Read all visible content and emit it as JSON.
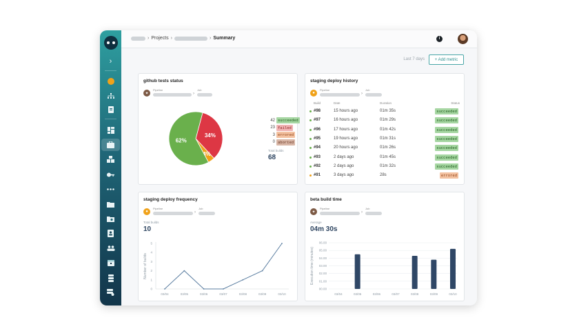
{
  "topbar": {
    "crumb_projects": "Projects",
    "crumb_current": "Summary",
    "info_glyph": "i",
    "help_glyph": "?"
  },
  "metrics": {
    "range_label": "Last 7 days",
    "add_metric_label": "+ Add metric"
  },
  "sidebar": {
    "collapse_glyph": "›",
    "items": [
      "org-badge-icon",
      "sitemap-icon",
      "document-icon",
      "dashboard-icon",
      "briefcase-icon",
      "cubes-icon",
      "key-icon",
      "dots-icon",
      "folder-icon",
      "folder-settings-icon",
      "contacts-icon",
      "users-icon",
      "calendar-icon",
      "server-icon",
      "server-settings-icon"
    ]
  },
  "pipeline_labels": {
    "pipeline": "Pipeline",
    "job": "Job",
    "arrow": "›"
  },
  "cards": {
    "github": {
      "title": "github tests status",
      "total_label": "Total builds",
      "total_value": "68",
      "slice_labels": [
        "34%",
        "4%",
        "62%"
      ]
    },
    "history": {
      "title": "staging deploy history",
      "col_build": "Build",
      "col_date": "Date",
      "col_duration": "Duration",
      "col_status": "Status"
    },
    "frequency": {
      "title": "staging deploy frequency",
      "total_label": "Total builds",
      "total_value": "10",
      "ylabel": "Number of builds"
    },
    "beta": {
      "title": "beta build time",
      "avg_label": "Average",
      "avg_value": "04m 30s",
      "ylabel": "Execution time (minutes)"
    }
  },
  "build_counts": [
    {
      "count": "42",
      "status": "succeeded",
      "color": "#a6d6a2"
    },
    {
      "count": "23",
      "status": "failed",
      "color": "#f0b3b3"
    },
    {
      "count": "3",
      "status": "errored",
      "color": "#f3c1a0"
    },
    {
      "count": "0",
      "status": "aborted",
      "color": "#d8b6a6"
    }
  ],
  "history_rows": [
    {
      "build": "#98",
      "date": "15 hours ago",
      "duration": "01m 35s",
      "status": "succeeded"
    },
    {
      "build": "#97",
      "date": "16 hours ago",
      "duration": "01m 29s",
      "status": "succeeded"
    },
    {
      "build": "#96",
      "date": "17 hours ago",
      "duration": "01m 42s",
      "status": "succeeded"
    },
    {
      "build": "#95",
      "date": "19 hours ago",
      "duration": "01m 31s",
      "status": "succeeded"
    },
    {
      "build": "#94",
      "date": "20 hours ago",
      "duration": "01m 26s",
      "status": "succeeded"
    },
    {
      "build": "#93",
      "date": "2 days ago",
      "duration": "01m 45s",
      "status": "succeeded"
    },
    {
      "build": "#92",
      "date": "2 days ago",
      "duration": "01m 32s",
      "status": "succeeded"
    },
    {
      "build": "#91",
      "date": "3 days ago",
      "duration": "28s",
      "status": "errored"
    }
  ],
  "colors": {
    "succeeded": "#6ab04c",
    "failed": "#dd3744",
    "errored": "#f0a21a",
    "line": "#5b7ea1",
    "bar": "#2f4766",
    "accent": "#2e8f90"
  },
  "chart_data": [
    {
      "type": "pie",
      "categories": [
        "failed",
        "errored",
        "succeeded"
      ],
      "values": [
        34,
        4,
        62
      ],
      "title": "github tests status"
    },
    {
      "type": "line",
      "title": "staging deploy frequency",
      "ylabel": "Number of builds",
      "x": [
        "03/04",
        "03/05",
        "03/06",
        "03/07",
        "03/08",
        "03/09",
        "03/10"
      ],
      "values": [
        0,
        2,
        0,
        0,
        1,
        2,
        5
      ],
      "ylim": [
        0,
        5
      ],
      "yticks": [
        "0",
        "1",
        "2",
        "3",
        "4",
        "5"
      ],
      "grid": false
    },
    {
      "type": "bar",
      "title": "beta build time",
      "ylabel": "Execution time (minutes)",
      "categories": [
        "03/04",
        "03/05",
        "03/06",
        "03/07",
        "03/08",
        "03/09",
        "03/10"
      ],
      "values": [
        0,
        4.5,
        0,
        0,
        4.3,
        3.8,
        5.2
      ],
      "ylim": [
        0,
        6
      ],
      "yticks": [
        "00.00",
        "01.00",
        "02.00",
        "03.00",
        "04.00",
        "05.00",
        "06.00"
      ],
      "grid": true
    }
  ]
}
